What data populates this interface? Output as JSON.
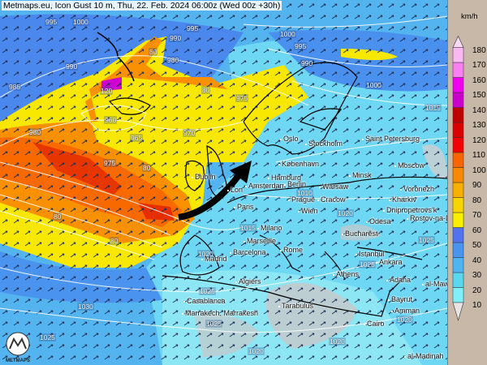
{
  "title": "Metmaps.eu, Icon Gust 10 m, Thu, 22. Feb. 2024 06:00z (Wed 00z +30h)",
  "legend": {
    "unit": "km/h",
    "ticks": [
      "180",
      "170",
      "160",
      "150",
      "140",
      "130",
      "120",
      "110",
      "100",
      "90",
      "80",
      "70",
      "60",
      "50",
      "40",
      "30",
      "20",
      "10"
    ],
    "bands": [
      {
        "from": 10,
        "to": 20,
        "color": "#7ff0f8"
      },
      {
        "from": 20,
        "to": 30,
        "color": "#5ad8f0"
      },
      {
        "from": 30,
        "to": 40,
        "color": "#4fb4f4"
      },
      {
        "from": 40,
        "to": 50,
        "color": "#4a94f0"
      },
      {
        "from": 50,
        "to": 60,
        "color": "#5272ee"
      },
      {
        "from": 60,
        "to": 70,
        "color": "#f8f000"
      },
      {
        "from": 70,
        "to": 80,
        "color": "#f8d400"
      },
      {
        "from": 80,
        "to": 90,
        "color": "#f8b000"
      },
      {
        "from": 90,
        "to": 100,
        "color": "#f88a00"
      },
      {
        "from": 100,
        "to": 110,
        "color": "#f86400"
      },
      {
        "from": 110,
        "to": 120,
        "color": "#f40000"
      },
      {
        "from": 120,
        "to": 130,
        "color": "#dc0000"
      },
      {
        "from": 130,
        "to": 140,
        "color": "#c00000"
      },
      {
        "from": 140,
        "to": 150,
        "color": "#cc00cc"
      },
      {
        "from": 150,
        "to": 160,
        "color": "#f000f0"
      },
      {
        "from": 160,
        "to": 170,
        "color": "#f880f0"
      },
      {
        "from": 170,
        "to": 180,
        "color": "#f8b8f0"
      }
    ],
    "over_color": "#f8d8f4",
    "under_color": "#e8e4e4"
  },
  "cities": [
    "Oslo",
    "Stockholm",
    "Saint Petersburg",
    "København",
    "Hamburg",
    "Amsterdam",
    "Berlin",
    "Minsk",
    "Moscow",
    "Warsaw",
    "Prague",
    "Cracow",
    "Wien",
    "Voronezh",
    "Kharkiv",
    "Dnipropetrovs'k",
    "Rostov-na-Donu",
    "Odesa",
    "Bucharest",
    "Paris",
    "Milano",
    "Marseille",
    "Barcelona",
    "Madrid",
    "Rome",
    "Istanbul",
    "Ankara",
    "Athens",
    "Adana",
    "al-Mawsil",
    "Algiers",
    "Bayrut",
    "Amman",
    "Tarabulus",
    "Casablanca",
    "Marrakech, Marrakesh",
    "Cairo",
    "al-Madinah",
    "Dublin",
    "Lon"
  ],
  "isobars": [
    "995",
    "1000",
    "995",
    "990",
    "980",
    "990",
    "985",
    "960",
    "965",
    "970",
    "975",
    "980",
    "975",
    "1000",
    "995",
    "990",
    "1000",
    "1015",
    "1010",
    "1020",
    "1015",
    "1020",
    "1025",
    "1025",
    "1030",
    "1025",
    "1025",
    "1020",
    "1020",
    "1025",
    "1020",
    "80",
    "80",
    "80",
    "80",
    "80",
    "120"
  ],
  "logo_text": "METMAPS",
  "icons": {
    "logo": "metmaps-logo",
    "arrow": "storm-track-arrow"
  }
}
